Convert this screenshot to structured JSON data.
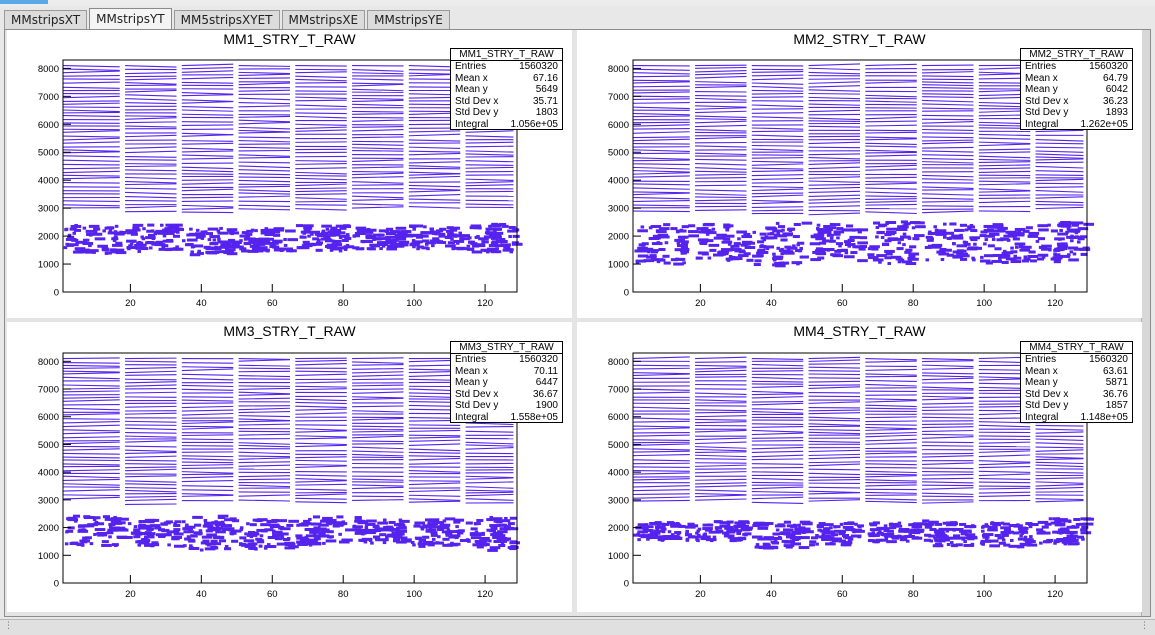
{
  "tabs": [
    {
      "label": "MMstripsXT",
      "active": false
    },
    {
      "label": "MMstripsYT",
      "active": true
    },
    {
      "label": "MM5stripsXYET",
      "active": false
    },
    {
      "label": "MMstripsXE",
      "active": false
    },
    {
      "label": "MMstripsYE",
      "active": false
    }
  ],
  "colors": {
    "marker": "#5522ee",
    "frame": "#000000",
    "pad": "#ffffff"
  },
  "chart_data": [
    {
      "type": "heatmap",
      "title": "MM1_STRY_T_RAW",
      "xlim": [
        1,
        129
      ],
      "ylim": [
        0,
        8300
      ],
      "x_ticks": [
        20,
        40,
        60,
        80,
        100,
        120
      ],
      "y_ticks": [
        0,
        1000,
        2000,
        3000,
        4000,
        5000,
        6000,
        7000,
        8000
      ],
      "gaps_x": [
        18,
        34,
        50,
        66,
        82,
        98,
        114
      ],
      "lower_band": [
        1300,
        2500
      ],
      "upper_band": [
        2800,
        8100
      ],
      "stats": {
        "name": "MM1_STRY_T_RAW",
        "rows": [
          {
            "label": "Entries",
            "value": "1560320"
          },
          {
            "label": "Mean x",
            "value": "67.16"
          },
          {
            "label": "Mean y",
            "value": "5649"
          },
          {
            "label": "Std Dev x",
            "value": "35.71"
          },
          {
            "label": "Std Dev y",
            "value": "1803"
          },
          {
            "label": "Integral",
            "value": "1.056e+05"
          }
        ]
      }
    },
    {
      "type": "heatmap",
      "title": "MM2_STRY_T_RAW",
      "xlim": [
        1,
        129
      ],
      "ylim": [
        0,
        8300
      ],
      "x_ticks": [
        20,
        40,
        60,
        80,
        100,
        120
      ],
      "y_ticks": [
        0,
        1000,
        2000,
        3000,
        4000,
        5000,
        6000,
        7000,
        8000
      ],
      "gaps_x": [
        18,
        34,
        50,
        66,
        82,
        98,
        114
      ],
      "lower_band": [
        900,
        2600
      ],
      "upper_band": [
        2700,
        8100
      ],
      "stats": {
        "name": "MM2_STRY_T_RAW",
        "rows": [
          {
            "label": "Entries",
            "value": "1560320"
          },
          {
            "label": "Mean x",
            "value": "64.79"
          },
          {
            "label": "Mean y",
            "value": "6042"
          },
          {
            "label": "Std Dev x",
            "value": "36.23"
          },
          {
            "label": "Std Dev y",
            "value": "1893"
          },
          {
            "label": "Integral",
            "value": "1.262e+05"
          }
        ]
      }
    },
    {
      "type": "heatmap",
      "title": "MM3_STRY_T_RAW",
      "xlim": [
        1,
        129
      ],
      "ylim": [
        0,
        8300
      ],
      "x_ticks": [
        20,
        40,
        60,
        80,
        100,
        120
      ],
      "y_ticks": [
        0,
        1000,
        2000,
        3000,
        4000,
        5000,
        6000,
        7000,
        8000
      ],
      "gaps_x": [
        18,
        34,
        50,
        66,
        82,
        98,
        114
      ],
      "lower_band": [
        1200,
        2500
      ],
      "upper_band": [
        2800,
        8100
      ],
      "stats": {
        "name": "MM3_STRY_T_RAW",
        "rows": [
          {
            "label": "Entries",
            "value": "1560320"
          },
          {
            "label": "Mean x",
            "value": "70.11"
          },
          {
            "label": "Mean y",
            "value": "6447"
          },
          {
            "label": "Std Dev x",
            "value": "36.67"
          },
          {
            "label": "Std Dev y",
            "value": "1900"
          },
          {
            "label": "Integral",
            "value": "1.558e+05"
          }
        ]
      }
    },
    {
      "type": "heatmap",
      "title": "MM4_STRY_T_RAW",
      "xlim": [
        1,
        129
      ],
      "ylim": [
        0,
        8300
      ],
      "x_ticks": [
        20,
        40,
        60,
        80,
        100,
        120
      ],
      "y_ticks": [
        0,
        1000,
        2000,
        3000,
        4000,
        5000,
        6000,
        7000,
        8000
      ],
      "gaps_x": [
        18,
        34,
        50,
        66,
        82,
        98,
        114
      ],
      "lower_band": [
        1300,
        2400
      ],
      "upper_band": [
        2800,
        8100
      ],
      "stats": {
        "name": "MM4_STRY_T_RAW",
        "rows": [
          {
            "label": "Entries",
            "value": "1560320"
          },
          {
            "label": "Mean x",
            "value": "63.61"
          },
          {
            "label": "Mean y",
            "value": "5871"
          },
          {
            "label": "Std Dev x",
            "value": "36.76"
          },
          {
            "label": "Std Dev y",
            "value": "1857"
          },
          {
            "label": "Integral",
            "value": "1.148e+05"
          }
        ]
      }
    }
  ]
}
